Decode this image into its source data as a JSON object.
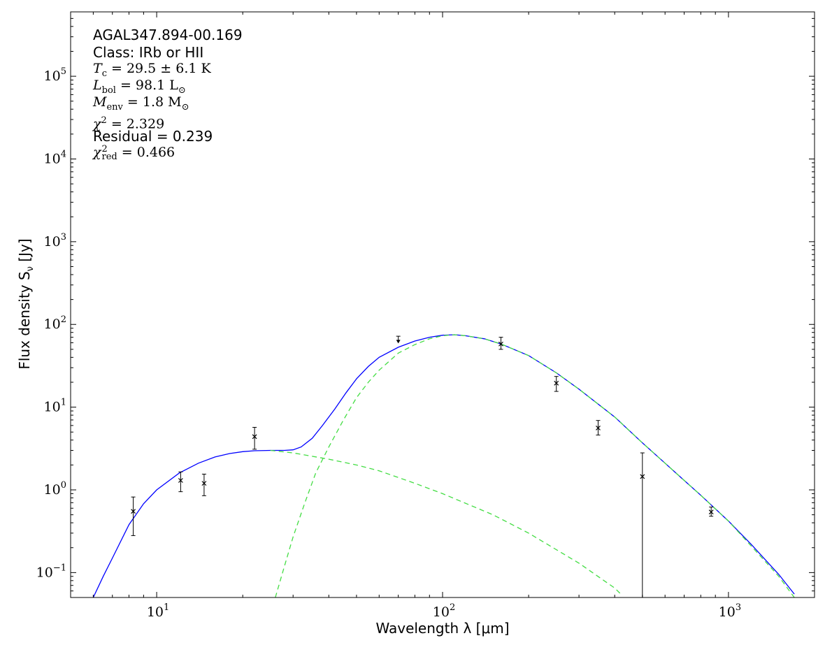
{
  "chart_data": {
    "type": "scatter",
    "title": "",
    "xlabel": "Wavelength λ [μm]",
    "ylabel": "Flux density S",
    "ylabel_sub": "ν",
    "ylabel_unit": " [Jy]",
    "xscale": "log",
    "yscale": "log",
    "xlim": [
      5,
      2000
    ],
    "ylim": [
      0.05,
      600000
    ],
    "grid": false,
    "x_ticks": [
      {
        "value": 10,
        "base": "10",
        "exp": "1"
      },
      {
        "value": 100,
        "base": "10",
        "exp": "2"
      },
      {
        "value": 1000,
        "base": "10",
        "exp": "3"
      }
    ],
    "y_ticks": [
      {
        "value": 0.1,
        "base": "10",
        "exp": "−1"
      },
      {
        "value": 1,
        "base": "10",
        "exp": "0"
      },
      {
        "value": 10,
        "base": "10",
        "exp": "1"
      },
      {
        "value": 100,
        "base": "10",
        "exp": "2"
      },
      {
        "value": 1000,
        "base": "10",
        "exp": "3"
      },
      {
        "value": 10000,
        "base": "10",
        "exp": "4"
      },
      {
        "value": 100000,
        "base": "10",
        "exp": "5"
      }
    ],
    "annotations": {
      "source": "AGAL347.894-00.169",
      "class": "Class: IRb or HII",
      "tc": {
        "symbol": "T",
        "sub": "c",
        "text": " = 29.5 ± 6.1 K"
      },
      "lbol": {
        "symbol": "L",
        "sub": "bol",
        "text": " = 98.1 L",
        "unit_sub": "⊙"
      },
      "menv": {
        "symbol": "M",
        "sub": "env",
        "text": " = 1.8 M",
        "unit_sub": "⊙"
      },
      "chi2": {
        "symbol": "χ",
        "sup": "2",
        "text": " = 2.329"
      },
      "residual": "Residual = 0.239",
      "chi2red": {
        "symbol": "χ",
        "sup": "2",
        "sub": "red",
        "text": " = 0.466"
      }
    },
    "series": [
      {
        "kind": "points",
        "marker": "x",
        "color": "#000000",
        "points": [
          {
            "x": 8.28,
            "y": 0.55,
            "ylo": 0.28,
            "yhi": 0.82
          },
          {
            "x": 12.13,
            "y": 1.3,
            "ylo": 0.95,
            "yhi": 1.65
          },
          {
            "x": 14.65,
            "y": 1.2,
            "ylo": 0.85,
            "yhi": 1.55
          },
          {
            "x": 22.0,
            "y": 4.4,
            "ylo": 3.1,
            "yhi": 5.7
          },
          {
            "x": 160,
            "y": 58,
            "ylo": 50,
            "yhi": 70
          },
          {
            "x": 250,
            "y": 19.5,
            "ylo": 15.5,
            "yhi": 23.5
          },
          {
            "x": 350,
            "y": 5.6,
            "ylo": 4.6,
            "yhi": 6.9
          },
          {
            "x": 500,
            "y": 1.45,
            "ylo": 0.04,
            "yhi": 2.8
          },
          {
            "x": 870,
            "y": 0.54,
            "ylo": 0.48,
            "yhi": 0.62
          }
        ]
      },
      {
        "kind": "upper_limit",
        "color": "#000000",
        "points": [
          {
            "x": 70,
            "y": 72,
            "ylo": 59
          }
        ]
      },
      {
        "kind": "line",
        "style": "solid",
        "color": "#0000ff",
        "points": [
          [
            6.0,
            0.05
          ],
          [
            6.5,
            0.09
          ],
          [
            7.0,
            0.15
          ],
          [
            8.0,
            0.38
          ],
          [
            9.0,
            0.68
          ],
          [
            10,
            1.0
          ],
          [
            12,
            1.6
          ],
          [
            14,
            2.1
          ],
          [
            16,
            2.5
          ],
          [
            18,
            2.75
          ],
          [
            20,
            2.9
          ],
          [
            22,
            2.97
          ],
          [
            25,
            3.0
          ],
          [
            28,
            3.0
          ],
          [
            30,
            3.05
          ],
          [
            32,
            3.3
          ],
          [
            35,
            4.2
          ],
          [
            38,
            6.0
          ],
          [
            42,
            9.5
          ],
          [
            46,
            15
          ],
          [
            50,
            22
          ],
          [
            55,
            31
          ],
          [
            60,
            40
          ],
          [
            70,
            53
          ],
          [
            80,
            63
          ],
          [
            90,
            70
          ],
          [
            100,
            74
          ],
          [
            110,
            75
          ],
          [
            120,
            73
          ],
          [
            140,
            67
          ],
          [
            160,
            58
          ],
          [
            200,
            42
          ],
          [
            250,
            26
          ],
          [
            300,
            16.5
          ],
          [
            400,
            7.6
          ],
          [
            500,
            3.7
          ],
          [
            600,
            2.1
          ],
          [
            700,
            1.3
          ],
          [
            800,
            0.86
          ],
          [
            1000,
            0.42
          ],
          [
            1200,
            0.22
          ],
          [
            1500,
            0.095
          ],
          [
            1700,
            0.055
          ]
        ]
      },
      {
        "kind": "line",
        "style": "dashed",
        "color": "#44dd44",
        "points": [
          [
            25,
            3.0
          ],
          [
            30,
            2.8
          ],
          [
            40,
            2.35
          ],
          [
            50,
            2.0
          ],
          [
            60,
            1.7
          ],
          [
            80,
            1.2
          ],
          [
            100,
            0.9
          ],
          [
            150,
            0.5
          ],
          [
            200,
            0.3
          ],
          [
            300,
            0.13
          ],
          [
            400,
            0.065
          ],
          [
            420,
            0.055
          ]
        ]
      },
      {
        "kind": "line",
        "style": "dashed",
        "color": "#44dd44",
        "points": [
          [
            26,
            0.05
          ],
          [
            28,
            0.12
          ],
          [
            30,
            0.27
          ],
          [
            33,
            0.7
          ],
          [
            36,
            1.6
          ],
          [
            40,
            3.3
          ],
          [
            45,
            7.0
          ],
          [
            50,
            13
          ],
          [
            55,
            20
          ],
          [
            60,
            28
          ],
          [
            70,
            45
          ],
          [
            80,
            57
          ],
          [
            90,
            67
          ],
          [
            100,
            73
          ],
          [
            110,
            75
          ],
          [
            120,
            73
          ],
          [
            140,
            67
          ],
          [
            160,
            58
          ],
          [
            200,
            42
          ],
          [
            250,
            26
          ],
          [
            300,
            16.5
          ],
          [
            400,
            7.6
          ],
          [
            500,
            3.7
          ],
          [
            600,
            2.1
          ],
          [
            700,
            1.3
          ],
          [
            800,
            0.86
          ],
          [
            1000,
            0.42
          ],
          [
            1200,
            0.21
          ],
          [
            1500,
            0.09
          ],
          [
            1700,
            0.05
          ]
        ]
      }
    ]
  }
}
